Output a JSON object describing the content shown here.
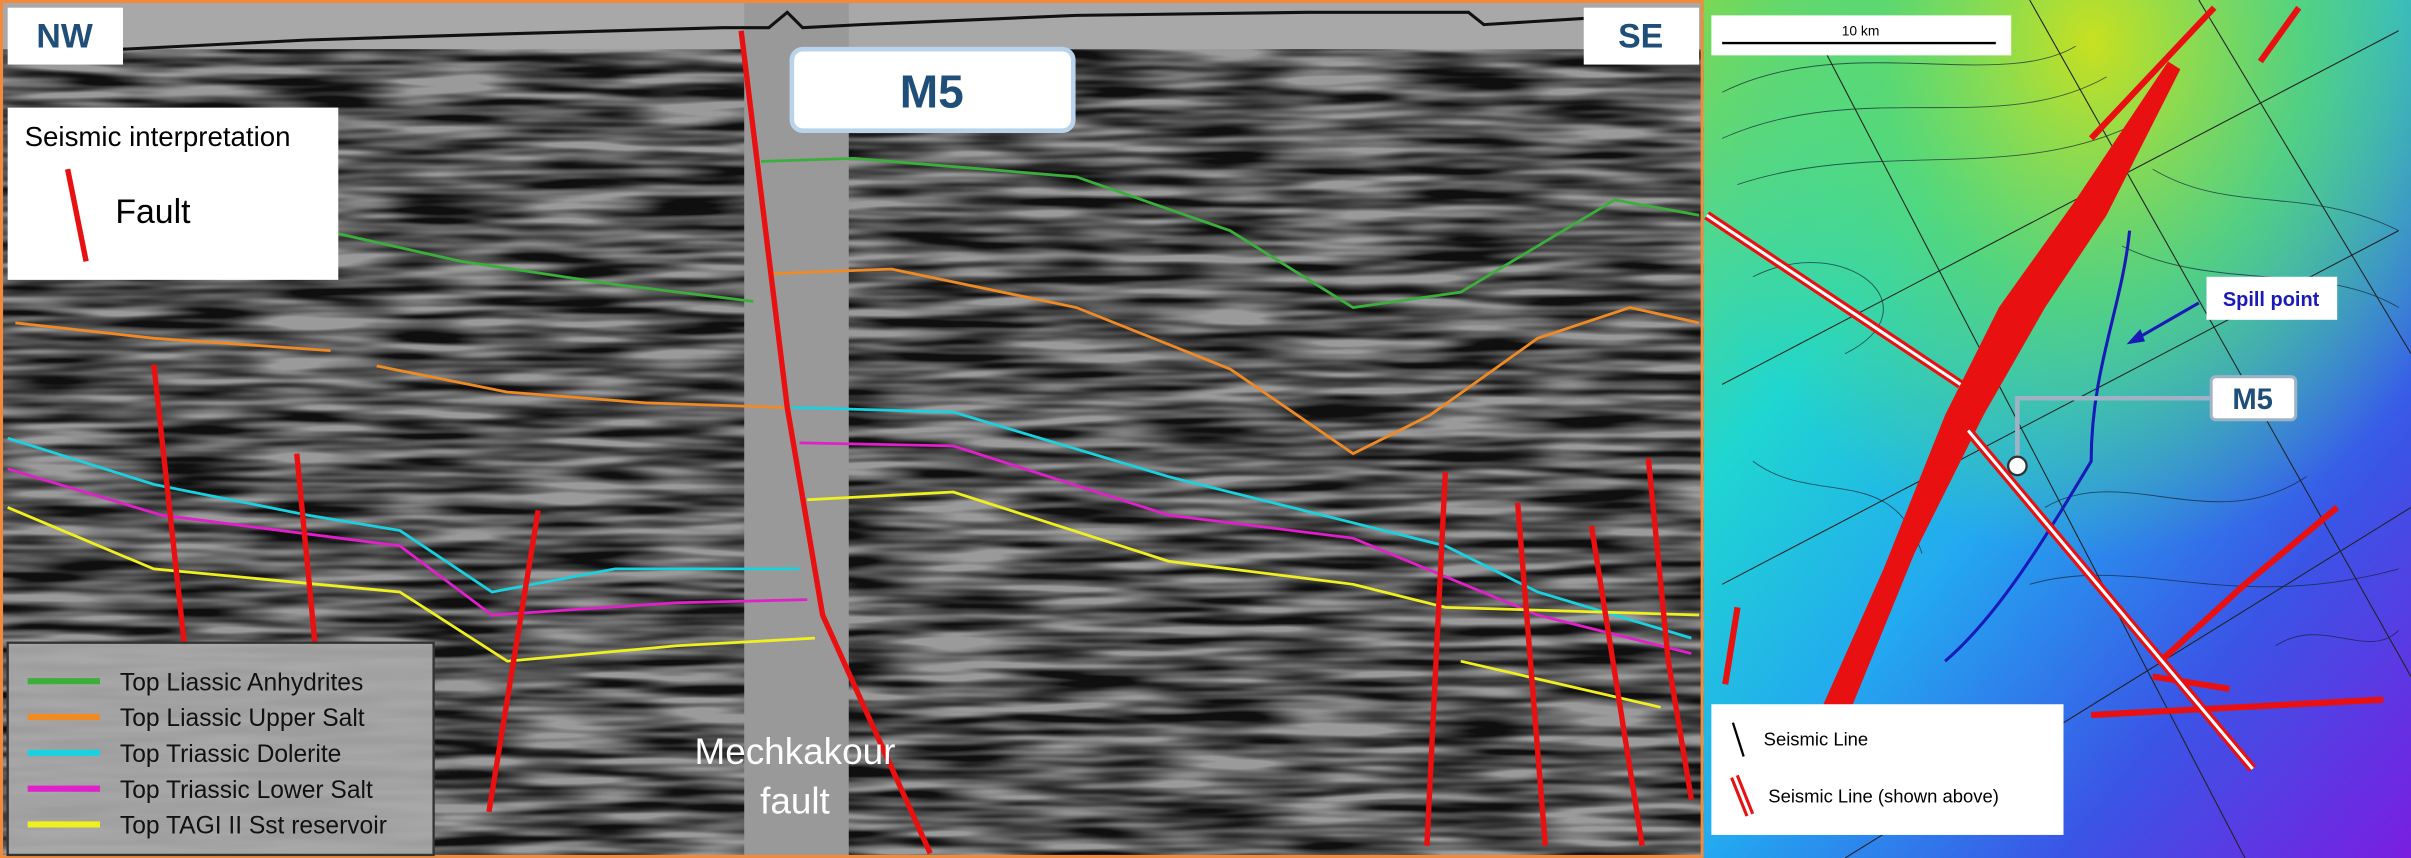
{
  "section": {
    "left_label": "NW",
    "right_label": "SE",
    "well_label": "M5",
    "fault_name": [
      "Mechkakour",
      "fault"
    ],
    "interpretation_title": "Seismic interpretation",
    "fault_label": "Fault",
    "horizons": [
      {
        "name": "Top Liassic Anhydrites",
        "color": "#3cae3c"
      },
      {
        "name": "Top Liassic Upper Salt",
        "color": "#f08a24"
      },
      {
        "name": "Top Triassic Dolerite",
        "color": "#1ad1e0"
      },
      {
        "name": "Top Triassic Lower Salt",
        "color": "#e020c8"
      },
      {
        "name": "Top TAGI II Sst reservoir",
        "color": "#f0f020"
      }
    ]
  },
  "map": {
    "scale_label": "10 km",
    "spill_point_label": "Spill point",
    "well_label": "M5",
    "legend": [
      "Seismic Line",
      "Seismic Line (shown above)"
    ]
  }
}
